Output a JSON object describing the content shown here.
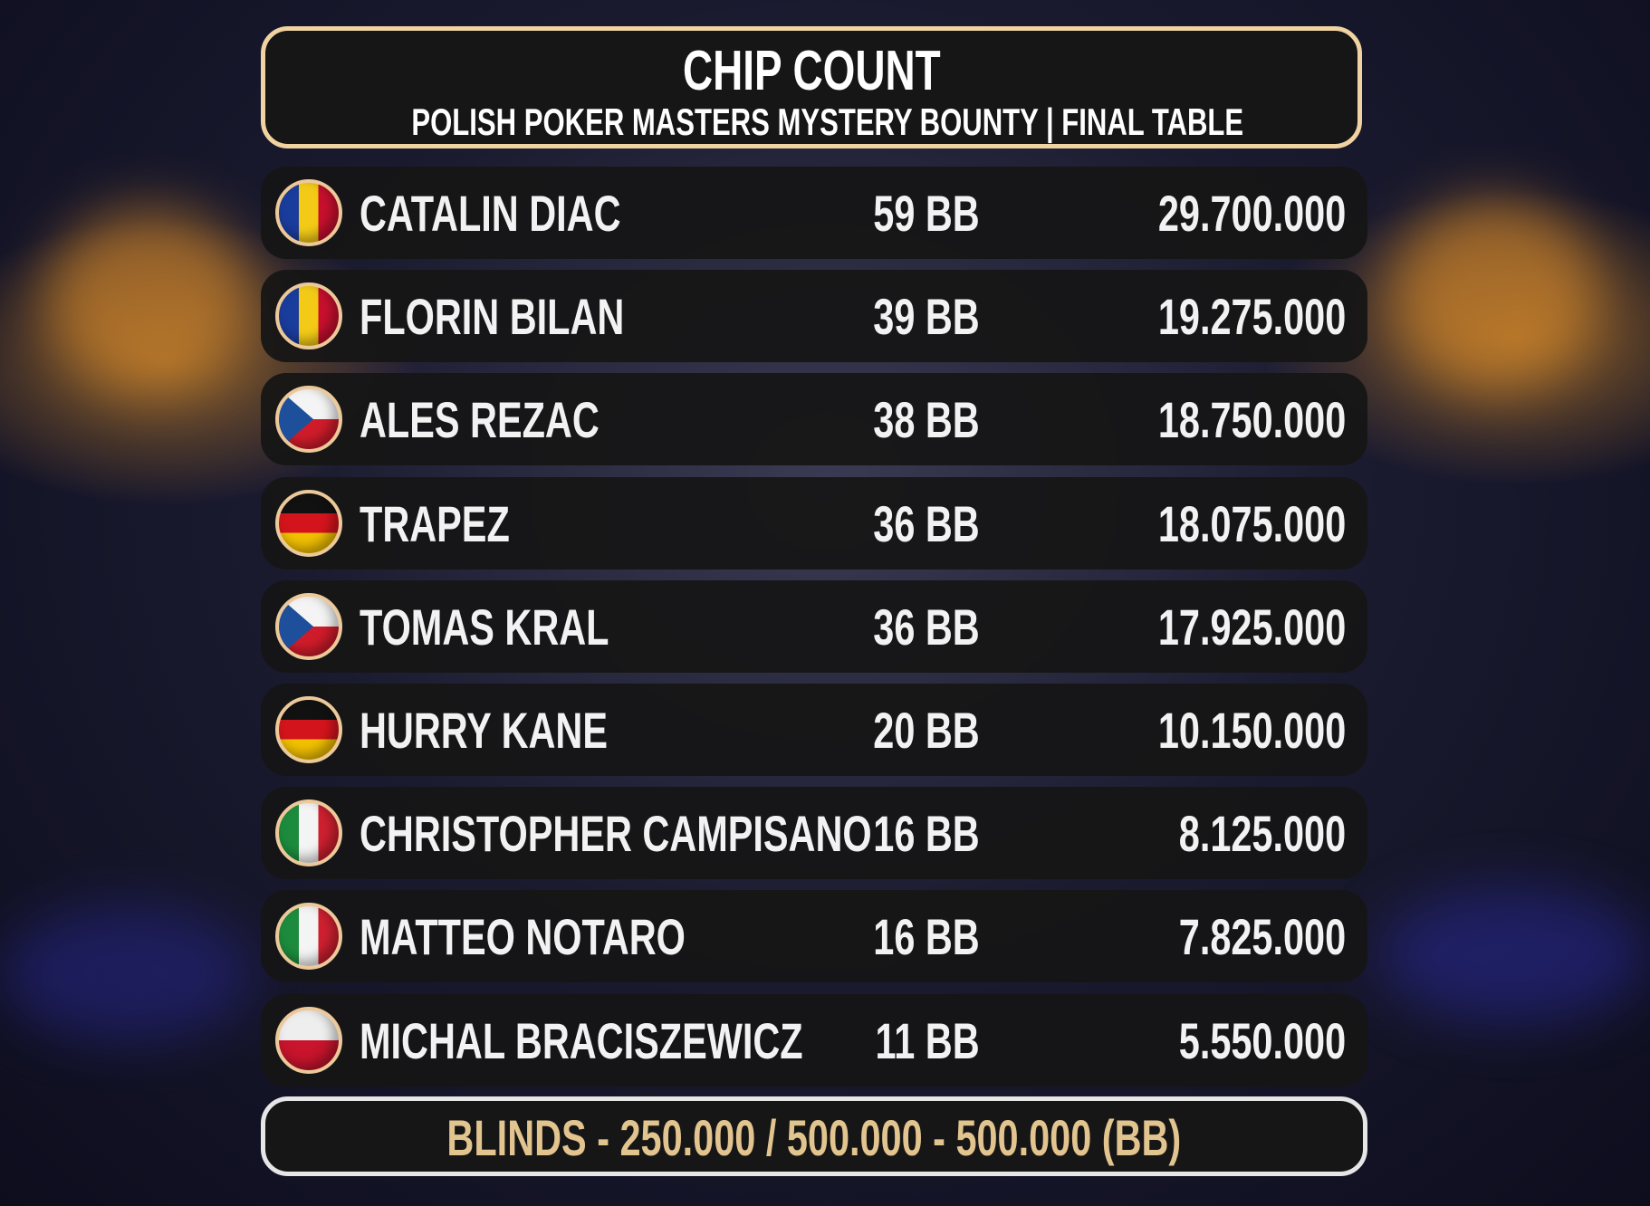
{
  "header": {
    "title": "CHIP COUNT",
    "subtitle": "POLISH POKER MASTERS MYSTERY BOUNTY | FINAL TABLE"
  },
  "players": [
    {
      "name": "CATALIN DIAC",
      "bb": "59 BB",
      "chips": "29.700.000",
      "flag": "romania"
    },
    {
      "name": "FLORIN BILAN",
      "bb": "39 BB",
      "chips": "19.275.000",
      "flag": "romania"
    },
    {
      "name": "ALES REZAC",
      "bb": "38 BB",
      "chips": "18.750.000",
      "flag": "czech-republic"
    },
    {
      "name": "TRAPEZ",
      "bb": "36 BB",
      "chips": "18.075.000",
      "flag": "germany"
    },
    {
      "name": "TOMAS KRAL",
      "bb": "36 BB",
      "chips": "17.925.000",
      "flag": "czech-republic"
    },
    {
      "name": "HURRY KANE",
      "bb": "20 BB",
      "chips": "10.150.000",
      "flag": "germany"
    },
    {
      "name": "CHRISTOPHER CAMPISANO",
      "bb": "16 BB",
      "chips": "8.125.000",
      "flag": "italy"
    },
    {
      "name": "MATTEO NOTARO",
      "bb": "16 BB",
      "chips": "7.825.000",
      "flag": "italy"
    },
    {
      "name": "MICHAL BRACISZEWICZ",
      "bb": "11 BB",
      "chips": "5.550.000",
      "flag": "poland"
    }
  ],
  "blinds": "BLINDS - 250.000 / 500.000 - 500.000 (BB)",
  "colors": {
    "accent_border": "#f1d3a2",
    "blinds_text": "#e2c48f",
    "panel": "#161616"
  }
}
